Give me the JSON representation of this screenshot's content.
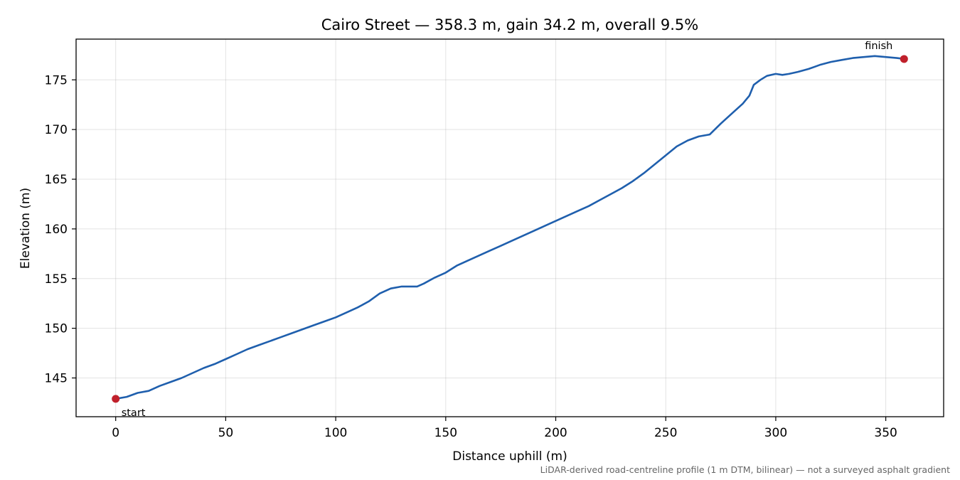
{
  "chart_data": {
    "type": "line",
    "title": "Cairo Street — 358.3 m, gain 34.2 m, overall 9.5%",
    "xlabel": "Distance uphill (m)",
    "ylabel": "Elevation (m)",
    "xlim": [
      -18,
      376.3
    ],
    "ylim": [
      141.1,
      179.1
    ],
    "xticks": [
      0,
      50,
      100,
      150,
      200,
      250,
      300,
      350
    ],
    "yticks": [
      145,
      150,
      155,
      160,
      165,
      170,
      175
    ],
    "grid": true,
    "caption": "LiDAR-derived road-centreline profile (1 m DTM, bilinear) — not a surveyed asphalt gradient",
    "colors": {
      "line": "#1f5fad",
      "marker": "#c0202b"
    },
    "series": [
      {
        "x": [
          0,
          5,
          10,
          15,
          20,
          25,
          30,
          35,
          40,
          45,
          50,
          55,
          60,
          65,
          70,
          75,
          80,
          85,
          90,
          95,
          100,
          105,
          110,
          115,
          120,
          125,
          130,
          133,
          137,
          140,
          145,
          150,
          155,
          160,
          165,
          170,
          175,
          180,
          185,
          190,
          195,
          200,
          205,
          210,
          215,
          220,
          225,
          230,
          235,
          240,
          245,
          250,
          255,
          260,
          265,
          270,
          275,
          280,
          285,
          288,
          290,
          293,
          296,
          300,
          303,
          306,
          310,
          315,
          320,
          325,
          330,
          335,
          340,
          345,
          350,
          355,
          358.3
        ],
        "y": [
          142.9,
          143.1,
          143.5,
          143.7,
          144.2,
          144.6,
          145.0,
          145.5,
          146.0,
          146.4,
          146.9,
          147.4,
          147.9,
          148.3,
          148.7,
          149.1,
          149.5,
          149.9,
          150.3,
          150.7,
          151.1,
          151.6,
          152.1,
          152.7,
          153.5,
          154.0,
          154.2,
          154.2,
          154.2,
          154.5,
          155.1,
          155.6,
          156.3,
          156.8,
          157.3,
          157.8,
          158.3,
          158.8,
          159.3,
          159.8,
          160.3,
          160.8,
          161.3,
          161.8,
          162.3,
          162.9,
          163.5,
          164.1,
          164.8,
          165.6,
          166.5,
          167.4,
          168.3,
          168.9,
          169.3,
          169.5,
          170.6,
          171.6,
          172.6,
          173.4,
          174.5,
          175.0,
          175.4,
          175.6,
          175.5,
          175.6,
          175.8,
          176.1,
          176.5,
          176.8,
          177.0,
          177.2,
          177.3,
          177.4,
          177.3,
          177.2,
          177.1
        ]
      }
    ],
    "annotations": [
      {
        "text": "start",
        "x": 0,
        "y": 142.9
      },
      {
        "text": "finish",
        "x": 358.3,
        "y": 177.1
      }
    ]
  }
}
